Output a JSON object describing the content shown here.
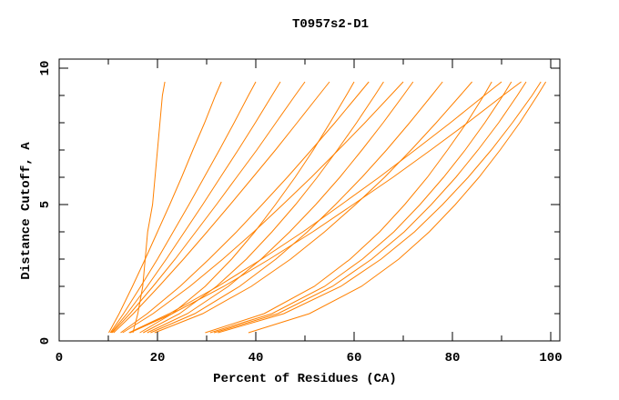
{
  "chart_data": {
    "type": "line",
    "title": "T0957s2-D1",
    "xlabel": "Percent of Residues (CA)",
    "ylabel": "Distance Cutoff, A",
    "xlim": [
      0,
      100
    ],
    "ylim": [
      0,
      10
    ],
    "x_ticks": [
      0,
      20,
      40,
      60,
      80,
      100
    ],
    "y_ticks": [
      0,
      5,
      10
    ],
    "grid": false,
    "line_color": "#ff8000",
    "y_levels": [
      0.3,
      1,
      2,
      3,
      4,
      5,
      6,
      7,
      8,
      9,
      9.5
    ],
    "series": [
      {
        "x": [
          15,
          16,
          17,
          17.5,
          18,
          19,
          19.5,
          20,
          20.5,
          21,
          21.5
        ]
      },
      {
        "x": [
          10.1,
          12.2,
          14.9,
          17.5,
          20.0,
          22.5,
          24.9,
          27.2,
          29.6,
          31.8,
          33
        ]
      },
      {
        "x": [
          10.4,
          13.1,
          16.6,
          20.0,
          23.2,
          26.4,
          29.5,
          32.6,
          35.6,
          38.5,
          40
        ]
      },
      {
        "x": [
          10.6,
          13.8,
          17.9,
          21.8,
          25.5,
          29.2,
          32.8,
          36.4,
          39.9,
          43.3,
          45
        ]
      },
      {
        "x": [
          10.8,
          14.4,
          19.1,
          23.6,
          27.8,
          32.0,
          36.1,
          40.2,
          44.1,
          48.0,
          50
        ]
      },
      {
        "x": [
          11.1,
          15.1,
          20.3,
          25.3,
          30.1,
          34.8,
          39.4,
          44.0,
          48.4,
          52.8,
          55
        ]
      },
      {
        "x": [
          16.4,
          23.0,
          29.7,
          35.1,
          39.8,
          44.0,
          48.0,
          51.7,
          55.1,
          58.4,
          60
        ]
      },
      {
        "x": [
          17.1,
          24.5,
          32.0,
          38.1,
          43.3,
          48.1,
          52.5,
          56.6,
          60.5,
          64.2,
          66
        ]
      },
      {
        "x": [
          17.9,
          26.1,
          34.4,
          41.1,
          46.9,
          52.2,
          57.1,
          61.6,
          65.9,
          70.0,
          72
        ]
      },
      {
        "x": [
          18.6,
          27.6,
          36.7,
          44.1,
          50.5,
          56.2,
          61.6,
          66.6,
          71.3,
          75.8,
          78
        ]
      },
      {
        "x": [
          19.4,
          29.2,
          39.1,
          47.1,
          54.0,
          60.3,
          66.2,
          71.6,
          76.7,
          81.6,
          84
        ]
      },
      {
        "x": [
          29.7,
          41.7,
          51.9,
          59.2,
          65.2,
          70.3,
          74.9,
          79.0,
          82.9,
          86.4,
          88
        ]
      },
      {
        "x": [
          30.7,
          43.3,
          54.0,
          61.7,
          68.1,
          73.4,
          78.2,
          82.6,
          86.6,
          90.3,
          92
        ]
      },
      {
        "x": [
          31.5,
          44.5,
          55.6,
          63.6,
          70.2,
          75.7,
          80.7,
          85.2,
          89.4,
          93.2,
          95
        ]
      },
      {
        "x": [
          32.3,
          45.7,
          57.3,
          65.5,
          72.3,
          78.0,
          83.2,
          87.9,
          92.2,
          96.2,
          98
        ]
      },
      {
        "x": [
          38.5,
          50.9,
          61.5,
          69.1,
          75.3,
          80.6,
          85.4,
          89.7,
          93.7,
          97.3,
          99
        ]
      },
      {
        "x": [
          12.5,
          17.9,
          24.6,
          30.5,
          36.1,
          41.3,
          46.4,
          51.3,
          56.1,
          60.7,
          63
        ]
      },
      {
        "x": [
          12.9,
          19.1,
          26.6,
          33.3,
          39.6,
          45.5,
          51.3,
          56.8,
          62.2,
          67.4,
          70
        ]
      },
      {
        "x": [
          14.2,
          22.4,
          32.3,
          41.2,
          49.6,
          57.4,
          65.1,
          72.4,
          79.6,
          86.5,
          90
        ]
      },
      {
        "x": [
          14.4,
          23.0,
          33.5,
          42.8,
          51.6,
          59.8,
          67.9,
          75.6,
          83.1,
          90.3,
          94
        ]
      }
    ]
  }
}
